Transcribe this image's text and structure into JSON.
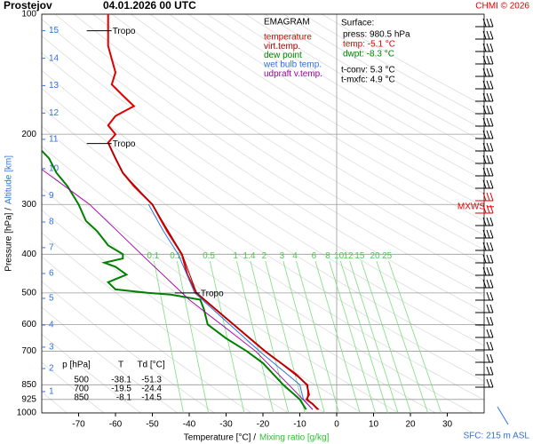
{
  "chart_data": {
    "type": "emagram",
    "title": "Prostejov",
    "subtitle": "04.01.2026 00 UTC",
    "credit": "CHMI © 2026",
    "xlabel": "Temperature [°C]  /",
    "x2label": "Mixing ratio [g/kg]",
    "ylabel": "Pressure [hPa]  /",
    "y2label": "Altitude [km]",
    "xlim": [
      -80,
      40
    ],
    "xticks": [
      -70,
      -60,
      -50,
      -40,
      -30,
      -20,
      -10,
      0,
      10,
      20,
      30
    ],
    "ylim": [
      100,
      1000
    ],
    "yticks": [
      100,
      200,
      300,
      400,
      500,
      600,
      700,
      850,
      925,
      1000
    ],
    "log_y": true,
    "grid": true,
    "legend_title": "EMAGRAM",
    "series": [
      {
        "name": "temperature",
        "color": "#e00000",
        "pressure": [
          980.5,
          950,
          925,
          900,
          850,
          800,
          700,
          600,
          500,
          450,
          400,
          350,
          300,
          270,
          250,
          230,
          210,
          200,
          190,
          180,
          170,
          160,
          150,
          140,
          120,
          100
        ],
        "temperature": [
          -5.1,
          -6.5,
          -8.2,
          -7.5,
          -8.1,
          -11,
          -19.5,
          -28,
          -38.1,
          -40.5,
          -42,
          -46,
          -50,
          -55,
          -58,
          -60,
          -62,
          -60,
          -62,
          -60,
          -55,
          -58,
          -61,
          -60,
          -62,
          -62
        ]
      },
      {
        "name": "virt.temp.",
        "color": "#a00000",
        "pressure": [
          980.5,
          925,
          850,
          700,
          600,
          500,
          400,
          300,
          250,
          210
        ],
        "temperature": [
          -4.8,
          -7.9,
          -7.8,
          -19.3,
          -27.9,
          -38,
          -41.9,
          -50,
          -58,
          -62
        ]
      },
      {
        "name": "dew point",
        "color": "#008000",
        "pressure": [
          980.5,
          925,
          850,
          750,
          700,
          650,
          600,
          550,
          520,
          505,
          500,
          490,
          470,
          450,
          430,
          420,
          410,
          400,
          380,
          350,
          330,
          300,
          270,
          250,
          230,
          220
        ],
        "temperature": [
          -8.3,
          -10,
          -14.5,
          -20,
          -24.4,
          -30,
          -35,
          -36,
          -37,
          -45,
          -51.3,
          -60,
          -62,
          -57,
          -60,
          -63,
          -58,
          -58,
          -62,
          -65,
          -68,
          -70,
          -73,
          -76,
          -78,
          -80
        ]
      },
      {
        "name": "wet bulb temp.",
        "color": "#3070e0",
        "pressure": [
          980.5,
          925,
          850,
          700,
          600,
          500,
          400,
          350,
          300
        ],
        "temperature": [
          -6.5,
          -9,
          -10,
          -21,
          -29,
          -38.5,
          -43,
          -47,
          -51
        ]
      },
      {
        "name": "udpraft v.temp.",
        "color": "#a000a0",
        "pressure": [
          980.5,
          850,
          700,
          520,
          400,
          300,
          245
        ],
        "temperature": [
          -6.5,
          -13,
          -22,
          -40,
          -53,
          -67,
          -80
        ]
      }
    ],
    "mixing_ratio_ticks": [
      0.1,
      0.2,
      0.5,
      1,
      1.4,
      2,
      3,
      4,
      6,
      8,
      10,
      12,
      15,
      20,
      25
    ],
    "altitude_labels": [
      {
        "km": 1,
        "pressure": 884
      },
      {
        "km": 2,
        "pressure": 774
      },
      {
        "km": 3,
        "pressure": 684
      },
      {
        "km": 4,
        "pressure": 602
      },
      {
        "km": 5,
        "pressure": 516
      },
      {
        "km": 6,
        "pressure": 447
      },
      {
        "km": 7,
        "pressure": 385
      },
      {
        "km": 8,
        "pressure": 332
      },
      {
        "km": 9,
        "pressure": 285
      },
      {
        "km": 10,
        "pressure": 244
      },
      {
        "km": 11,
        "pressure": 206
      },
      {
        "km": 12,
        "pressure": 177
      },
      {
        "km": 13,
        "pressure": 151
      },
      {
        "km": 14,
        "pressure": 129
      },
      {
        "km": 15,
        "pressure": 110
      }
    ],
    "tropopause": [
      {
        "pressure": 110,
        "temperature": -62,
        "label": "Tropo"
      },
      {
        "pressure": 211,
        "temperature": -62,
        "label": "Tropo"
      },
      {
        "pressure": 500,
        "temperature": -38.1,
        "label": "Tropo"
      }
    ],
    "mxws": {
      "pressure": 304,
      "label": "MXWS"
    },
    "surface": {
      "title": "Surface:",
      "lines": [
        {
          "text": "press: 980.5 hPa",
          "color": "#000000"
        },
        {
          "text": "temp: -5.1 °C",
          "color": "#e00000"
        },
        {
          "text": "dwpt: -8.3 °C",
          "color": "#008000"
        },
        {
          "text": "t-conv: 5.3 °C",
          "color": "#000000"
        },
        {
          "text": "t-mxfc: 4.9 °C",
          "color": "#000000"
        }
      ]
    },
    "table": {
      "headers": [
        "p [hPa]",
        "T",
        "Td [°C]"
      ],
      "rows": [
        [
          500,
          -38.1,
          -51.3
        ],
        [
          700,
          -19.5,
          -24.4
        ],
        [
          850,
          -8.1,
          -14.5
        ]
      ]
    },
    "sfc_label": "SFC: 215 m ASL"
  }
}
